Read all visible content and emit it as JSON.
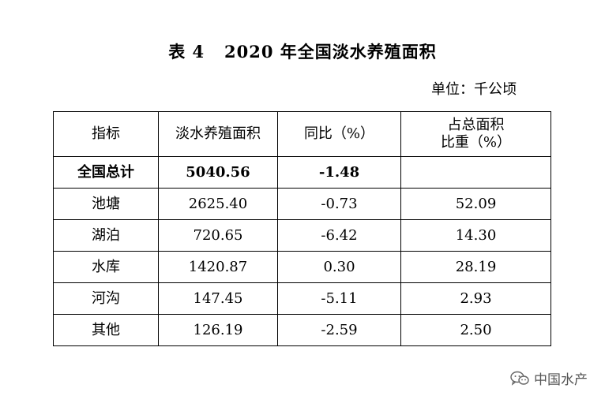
{
  "title": "表 4   2020 年全国淡水养殖面积",
  "unit": "单位：千公顷",
  "table": {
    "headers": [
      "指标",
      "淡水养殖面积",
      "同比（%）",
      "占总面积",
      "比重（%）"
    ],
    "rows": [
      [
        "全国总计",
        "5040.56",
        "-1.48",
        ""
      ],
      [
        "池塘",
        "2625.40",
        "-0.73",
        "52.09"
      ],
      [
        "湖泊",
        "720.65",
        "-6.42",
        "14.30"
      ],
      [
        "水库",
        "1420.87",
        "0.30",
        "28.19"
      ],
      [
        "河沟",
        "147.45",
        "-5.11",
        "2.93"
      ],
      [
        "其他",
        "126.19",
        "-2.59",
        "2.50"
      ]
    ]
  },
  "watermark": {
    "text": "中国水产",
    "icon": "wechat-icon"
  }
}
